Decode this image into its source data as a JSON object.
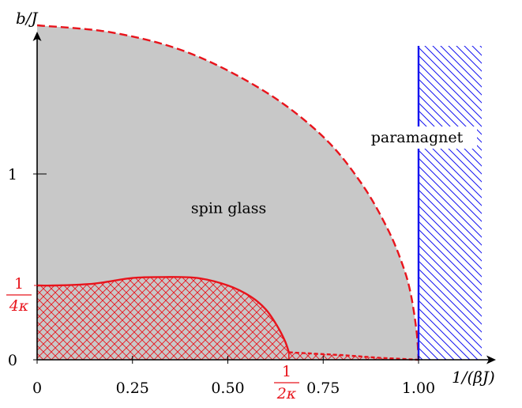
{
  "chart_data": {
    "type": "area",
    "xlabel": "1/(βJ)",
    "ylabel": "b/J",
    "xlim": [
      0,
      1.18
    ],
    "ylim": [
      0,
      1.8
    ],
    "x_ticks": [
      {
        "value": 0,
        "label": "0"
      },
      {
        "value": 0.25,
        "label": "0.25"
      },
      {
        "value": 0.5,
        "label": "0.50"
      },
      {
        "value": 0.75,
        "label": "0.75"
      },
      {
        "value": 1.0,
        "label": "1.00"
      }
    ],
    "y_ticks": [
      {
        "value": 0,
        "label": "0"
      },
      {
        "value": 1,
        "label": "1"
      }
    ],
    "special_x_tick": {
      "value": 0.66,
      "numerator": "1",
      "denominator": "2κ"
    },
    "special_y_tick": {
      "value": 0.4,
      "numerator": "1",
      "denominator": "4κ"
    },
    "regions": {
      "spin_glass": {
        "label": "spin glass",
        "label_x": 0.2,
        "label_y": 0.82
      },
      "paramagnet": {
        "label": "paramagnet",
        "label_x": 1.14,
        "label_y": 1.42
      }
    },
    "spin_glass_boundary": {
      "style": "dashed",
      "x": [
        0,
        0.2,
        0.4,
        0.6,
        0.75,
        0.85,
        0.92,
        0.96,
        0.98,
        0.995,
        1.0
      ],
      "y": [
        1.8,
        1.76,
        1.65,
        1.44,
        1.2,
        0.95,
        0.7,
        0.5,
        0.35,
        0.15,
        0
      ]
    },
    "hatched_region_boundary": {
      "x": [
        0,
        0.05,
        0.15,
        0.25,
        0.33,
        0.42,
        0.5,
        0.56,
        0.6,
        0.63,
        0.65,
        0.66
      ],
      "y": [
        0.4,
        0.4,
        0.41,
        0.44,
        0.445,
        0.44,
        0.4,
        0.34,
        0.27,
        0.18,
        0.1,
        0.04
      ]
    },
    "hatched_tail": {
      "x": [
        0.66,
        0.8,
        0.9,
        1.0
      ],
      "y": [
        0.04,
        0.025,
        0.01,
        0
      ]
    },
    "paramagnet_boundary_x": 1.0,
    "colors": {
      "spin_glass_fill": "#c8c8c8",
      "red": "#e8141c",
      "blue": "#1414f0",
      "axis": "#000000"
    }
  }
}
